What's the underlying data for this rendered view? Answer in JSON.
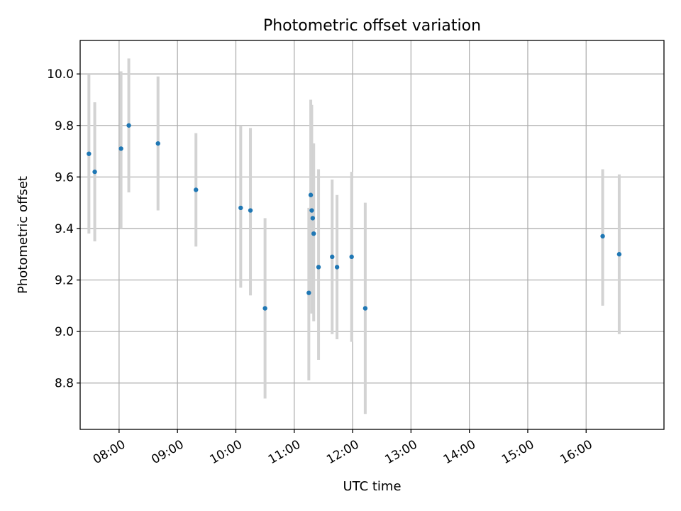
{
  "chart_data": {
    "type": "scatter",
    "title": "Photometric offset variation",
    "xlabel": "UTC time",
    "ylabel": "Photometric offset",
    "x_is_time": true,
    "xlim": [
      "07:20",
      "17:20"
    ],
    "ylim": [
      8.62,
      10.13
    ],
    "xticks": [
      "08:00",
      "09:00",
      "10:00",
      "11:00",
      "12:00",
      "13:00",
      "14:00",
      "15:00",
      "16:00"
    ],
    "yticks": [
      8.8,
      9.0,
      9.2,
      9.4,
      9.6,
      9.8,
      10.0
    ],
    "grid": true,
    "colors": {
      "points": "#1f77b4",
      "errorbars": "#d3d3d3"
    },
    "points": [
      {
        "x": "07:29",
        "y": 9.69,
        "ylo": 9.38,
        "yhi": 10.0
      },
      {
        "x": "07:35",
        "y": 9.62,
        "ylo": 9.35,
        "yhi": 9.89
      },
      {
        "x": "08:02",
        "y": 9.71,
        "ylo": 9.4,
        "yhi": 10.01
      },
      {
        "x": "08:10",
        "y": 9.8,
        "ylo": 9.54,
        "yhi": 10.06
      },
      {
        "x": "08:40",
        "y": 9.73,
        "ylo": 9.47,
        "yhi": 9.99
      },
      {
        "x": "09:19",
        "y": 9.55,
        "ylo": 9.33,
        "yhi": 9.77
      },
      {
        "x": "10:05",
        "y": 9.48,
        "ylo": 9.17,
        "yhi": 9.8
      },
      {
        "x": "10:15",
        "y": 9.47,
        "ylo": 9.14,
        "yhi": 9.79
      },
      {
        "x": "10:30",
        "y": 9.09,
        "ylo": 8.74,
        "yhi": 9.44
      },
      {
        "x": "11:15",
        "y": 9.15,
        "ylo": 8.81,
        "yhi": 9.48
      },
      {
        "x": "11:17",
        "y": 9.53,
        "ylo": 9.15,
        "yhi": 9.9
      },
      {
        "x": "11:18",
        "y": 9.47,
        "ylo": 9.07,
        "yhi": 9.88
      },
      {
        "x": "11:19",
        "y": 9.44,
        "ylo": 9.15,
        "yhi": 9.73
      },
      {
        "x": "11:20",
        "y": 9.38,
        "ylo": 9.04,
        "yhi": 9.73
      },
      {
        "x": "11:25",
        "y": 9.25,
        "ylo": 8.89,
        "yhi": 9.63
      },
      {
        "x": "11:39",
        "y": 9.29,
        "ylo": 8.99,
        "yhi": 9.59
      },
      {
        "x": "11:44",
        "y": 9.25,
        "ylo": 8.97,
        "yhi": 9.53
      },
      {
        "x": "11:59",
        "y": 9.29,
        "ylo": 8.96,
        "yhi": 9.62
      },
      {
        "x": "12:13",
        "y": 9.09,
        "ylo": 8.68,
        "yhi": 9.5
      },
      {
        "x": "16:17",
        "y": 9.37,
        "ylo": 9.1,
        "yhi": 9.63
      },
      {
        "x": "16:34",
        "y": 9.3,
        "ylo": 8.99,
        "yhi": 9.61
      }
    ]
  }
}
